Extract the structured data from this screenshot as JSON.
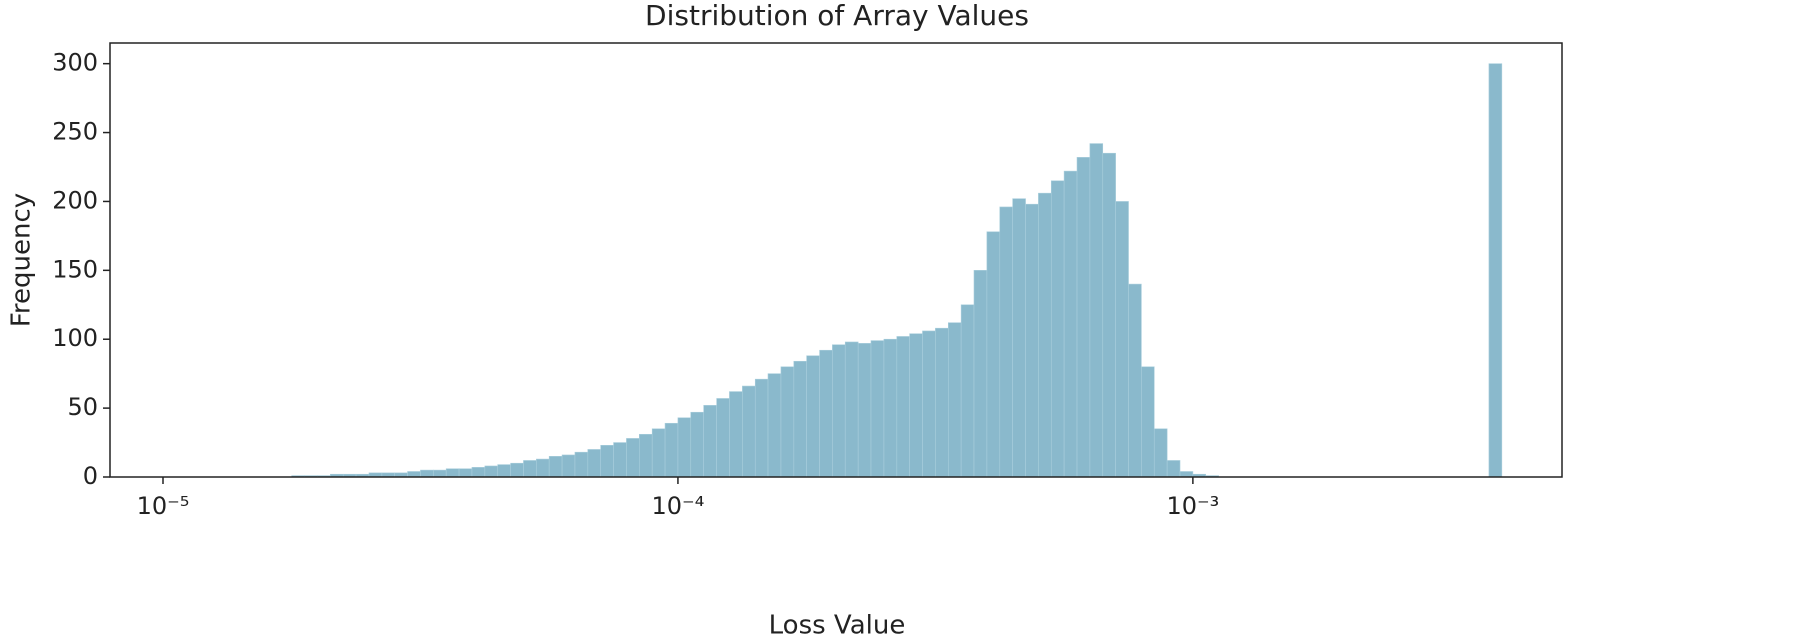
{
  "chart_data": {
    "type": "histogram",
    "title": "Distribution of Array Values",
    "x_label": "Loss Value",
    "y_label": "Frequency",
    "xscale": "log",
    "color": "#8ab9cc",
    "grid": false,
    "bins": [
      1.778e-05,
      1.884e-05,
      1.995e-05,
      2.113e-05,
      2.239e-05,
      2.371e-05,
      2.512e-05,
      2.661e-05,
      2.818e-05,
      2.985e-05,
      3.162e-05,
      3.35e-05,
      3.548e-05,
      3.758e-05,
      3.981e-05,
      4.217e-05,
      4.467e-05,
      4.732e-05,
      5.012e-05,
      5.309e-05,
      5.623e-05,
      5.957e-05,
      6.31e-05,
      6.683e-05,
      7.079e-05,
      7.499e-05,
      7.943e-05,
      8.414e-05,
      8.913e-05,
      9.441e-05,
      0.0001,
      0.0001059,
      0.0001122,
      0.0001189,
      0.0001259,
      0.0001334,
      0.0001413,
      0.0001496,
      0.0001585,
      0.0001679,
      0.0001778,
      0.0001884,
      0.0001995,
      0.0002113,
      0.0002239,
      0.0002371,
      0.0002512,
      0.0002661,
      0.0002818,
      0.0002985,
      0.0003162,
      0.000335,
      0.0003548,
      0.0003758,
      0.0003981,
      0.0004217,
      0.0004467,
      0.0004732,
      0.0005012,
      0.0005309,
      0.0005623,
      0.0005957,
      0.000631,
      0.0006683,
      0.0007079,
      0.0007499,
      0.0007943,
      0.0008414,
      0.0008913,
      0.0009441,
      0.001,
      0.001059,
      0.001122,
      0.001189,
      0.001259,
      0.001334,
      0.001413,
      0.001496,
      0.001585,
      0.001679,
      0.001778,
      0.001884,
      0.001995,
      0.002113,
      0.002239,
      0.002371,
      0.002512,
      0.002661,
      0.002818,
      0.002985,
      0.003162,
      0.00335,
      0.003548,
      0.003758,
      0.003981
    ],
    "values": [
      1,
      1,
      1,
      2,
      2,
      2,
      3,
      3,
      3,
      4,
      5,
      5,
      6,
      6,
      7,
      8,
      9,
      10,
      12,
      13,
      15,
      16,
      18,
      20,
      23,
      25,
      28,
      31,
      35,
      39,
      43,
      47,
      52,
      57,
      62,
      66,
      71,
      75,
      80,
      84,
      88,
      92,
      96,
      98,
      97,
      99,
      100,
      102,
      104,
      106,
      108,
      112,
      125,
      150,
      178,
      196,
      202,
      198,
      206,
      215,
      222,
      232,
      242,
      235,
      200,
      140,
      80,
      35,
      12,
      4,
      2,
      1,
      0,
      0,
      0,
      0,
      0,
      0,
      0,
      0,
      0,
      0,
      0,
      0,
      0,
      0,
      0,
      0,
      0,
      0,
      0,
      0,
      0,
      300
    ],
    "xlim": [
      7.89e-06,
      0.00521
    ],
    "ylim": [
      0,
      315
    ],
    "xticks": [
      {
        "value": 1e-05,
        "label": "10⁻⁵"
      },
      {
        "value": 0.0001,
        "label": "10⁻⁴"
      },
      {
        "value": 0.001,
        "label": "10⁻³"
      }
    ],
    "yticks": [
      0,
      50,
      100,
      150,
      200,
      250,
      300
    ]
  }
}
